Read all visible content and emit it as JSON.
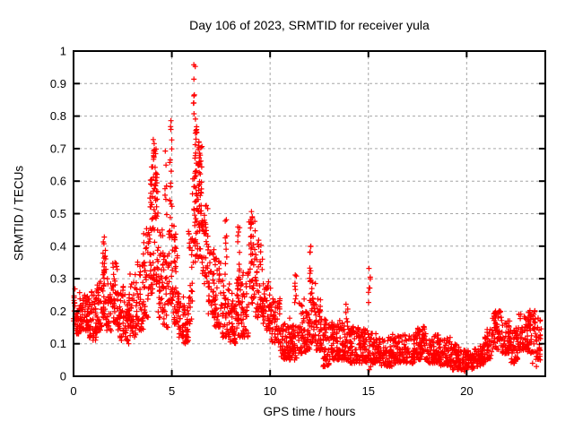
{
  "chart_data": {
    "type": "scatter",
    "title": "Day 106 of 2023, SRMTID for receiver yula",
    "xlabel": "GPS time / hours",
    "ylabel": "SRMTID / TECUs",
    "xlim": [
      0,
      24
    ],
    "ylim": [
      0,
      1
    ],
    "x_ticks": [
      {
        "v": 0,
        "label": "0"
      },
      {
        "v": 5,
        "label": "5"
      },
      {
        "v": 10,
        "label": "10"
      },
      {
        "v": 15,
        "label": "15"
      },
      {
        "v": 20,
        "label": "20"
      }
    ],
    "y_ticks": [
      {
        "v": 0,
        "label": "0"
      },
      {
        "v": 0.1,
        "label": "0.1"
      },
      {
        "v": 0.2,
        "label": "0.2"
      },
      {
        "v": 0.3,
        "label": "0.3"
      },
      {
        "v": 0.4,
        "label": "0.4"
      },
      {
        "v": 0.5,
        "label": "0.5"
      },
      {
        "v": 0.6,
        "label": "0.6"
      },
      {
        "v": 0.7,
        "label": "0.7"
      },
      {
        "v": 0.8,
        "label": "0.8"
      },
      {
        "v": 0.9,
        "label": "0.9"
      },
      {
        "v": 1,
        "label": "1"
      }
    ],
    "grid": true,
    "legend": "none",
    "marker": {
      "shape": "plus",
      "color": "#ff0000",
      "size": 6,
      "stroke_width": 1.2
    },
    "colors": {
      "axis": "#000000",
      "grid": "#a6a6a6",
      "text": "#000000",
      "background": "#ffffff"
    },
    "seed": 1062023,
    "description": "Dense time series of SRMTID values vs GPS time; quiet ~0.2 band early, large ionospheric-disturbance peaks near hours 4 (0.75), 5 (0.85) and 6.2 (0.96), decaying to a low 0.03-0.15 band after hour 11 with minor spikes, minimum near hour 20, slight rise to ~0.2 by hour 23.8",
    "bands": [
      [
        0.0,
        0.35,
        0.13,
        0.27,
        45
      ],
      [
        0.35,
        0.8,
        0.14,
        0.25,
        55
      ],
      [
        0.8,
        1.2,
        0.11,
        0.28,
        50
      ],
      [
        1.2,
        1.45,
        0.14,
        0.3,
        30
      ],
      [
        1.45,
        1.65,
        0.18,
        0.4,
        28
      ],
      [
        1.65,
        1.95,
        0.14,
        0.3,
        36
      ],
      [
        1.95,
        2.25,
        0.16,
        0.35,
        38
      ],
      [
        2.25,
        2.55,
        0.11,
        0.28,
        36
      ],
      [
        2.55,
        2.85,
        0.1,
        0.26,
        36
      ],
      [
        2.85,
        3.2,
        0.12,
        0.33,
        42
      ],
      [
        3.2,
        3.55,
        0.14,
        0.36,
        42
      ],
      [
        3.55,
        3.85,
        0.18,
        0.46,
        40
      ],
      [
        3.85,
        4.05,
        0.25,
        0.65,
        30
      ],
      [
        4.05,
        4.3,
        0.28,
        0.72,
        40
      ],
      [
        4.3,
        4.55,
        0.18,
        0.45,
        32
      ],
      [
        4.55,
        4.8,
        0.15,
        0.38,
        30
      ],
      [
        4.8,
        5.05,
        0.22,
        0.55,
        35
      ],
      [
        5.05,
        5.3,
        0.16,
        0.4,
        30
      ],
      [
        5.3,
        5.6,
        0.12,
        0.26,
        34
      ],
      [
        5.6,
        5.85,
        0.1,
        0.22,
        30
      ],
      [
        5.85,
        6.05,
        0.15,
        0.45,
        26
      ],
      [
        6.05,
        6.3,
        0.35,
        0.78,
        38
      ],
      [
        6.3,
        6.55,
        0.35,
        0.72,
        36
      ],
      [
        6.55,
        6.85,
        0.28,
        0.55,
        36
      ],
      [
        6.85,
        7.15,
        0.18,
        0.4,
        36
      ],
      [
        7.15,
        7.55,
        0.15,
        0.37,
        44
      ],
      [
        7.55,
        7.95,
        0.12,
        0.3,
        44
      ],
      [
        7.95,
        8.25,
        0.1,
        0.26,
        36
      ],
      [
        8.25,
        8.55,
        0.12,
        0.3,
        36
      ],
      [
        8.55,
        8.9,
        0.12,
        0.32,
        40
      ],
      [
        8.9,
        9.25,
        0.22,
        0.48,
        40
      ],
      [
        9.25,
        9.65,
        0.18,
        0.42,
        44
      ],
      [
        9.65,
        10.05,
        0.14,
        0.3,
        44
      ],
      [
        10.05,
        10.5,
        0.1,
        0.25,
        50
      ],
      [
        10.5,
        11.0,
        0.05,
        0.18,
        52
      ],
      [
        11.0,
        11.45,
        0.05,
        0.16,
        50
      ],
      [
        11.45,
        11.75,
        0.07,
        0.25,
        36
      ],
      [
        11.75,
        12.05,
        0.07,
        0.2,
        36
      ],
      [
        12.05,
        12.35,
        0.1,
        0.3,
        36
      ],
      [
        12.35,
        12.65,
        0.08,
        0.24,
        36
      ],
      [
        12.65,
        13.0,
        0.03,
        0.18,
        42
      ],
      [
        13.0,
        13.5,
        0.05,
        0.17,
        58
      ],
      [
        13.5,
        14.0,
        0.05,
        0.18,
        58
      ],
      [
        14.0,
        14.5,
        0.04,
        0.16,
        58
      ],
      [
        14.5,
        15.0,
        0.04,
        0.15,
        58
      ],
      [
        15.0,
        15.6,
        0.04,
        0.14,
        64
      ],
      [
        15.6,
        16.2,
        0.03,
        0.12,
        64
      ],
      [
        16.2,
        16.8,
        0.04,
        0.13,
        64
      ],
      [
        16.8,
        17.4,
        0.04,
        0.13,
        64
      ],
      [
        17.4,
        18.0,
        0.05,
        0.15,
        64
      ],
      [
        18.0,
        18.6,
        0.04,
        0.13,
        64
      ],
      [
        18.6,
        19.2,
        0.03,
        0.12,
        64
      ],
      [
        19.2,
        19.8,
        0.02,
        0.1,
        60
      ],
      [
        19.8,
        20.4,
        0.02,
        0.08,
        60
      ],
      [
        20.4,
        20.9,
        0.03,
        0.1,
        54
      ],
      [
        20.9,
        21.3,
        0.05,
        0.15,
        46
      ],
      [
        21.3,
        21.8,
        0.08,
        0.21,
        52
      ],
      [
        21.8,
        22.2,
        0.07,
        0.17,
        44
      ],
      [
        22.2,
        22.6,
        0.04,
        0.15,
        44
      ],
      [
        22.6,
        23.1,
        0.08,
        0.2,
        52
      ],
      [
        23.1,
        23.5,
        0.07,
        0.21,
        46
      ],
      [
        23.5,
        23.8,
        0.05,
        0.18,
        30
      ]
    ],
    "spikes": [
      [
        1.55,
        0.3,
        0.44,
        10
      ],
      [
        3.95,
        0.45,
        0.62,
        8
      ],
      [
        4.1,
        0.55,
        0.75,
        12
      ],
      [
        4.18,
        0.45,
        0.72,
        10
      ],
      [
        4.7,
        0.45,
        0.77,
        7
      ],
      [
        4.95,
        0.55,
        0.85,
        10
      ],
      [
        5.15,
        0.4,
        0.51,
        6
      ],
      [
        6.15,
        0.8,
        0.96,
        8
      ],
      [
        6.22,
        0.55,
        0.8,
        12
      ],
      [
        6.4,
        0.55,
        0.78,
        12
      ],
      [
        6.52,
        0.45,
        0.62,
        8
      ],
      [
        7.75,
        0.3,
        0.5,
        9
      ],
      [
        8.4,
        0.3,
        0.5,
        10
      ],
      [
        9.05,
        0.42,
        0.51,
        8
      ],
      [
        11.3,
        0.22,
        0.33,
        8
      ],
      [
        12.05,
        0.15,
        0.4,
        14
      ],
      [
        13.9,
        0.16,
        0.23,
        5
      ],
      [
        15.05,
        0.18,
        0.37,
        7
      ],
      [
        17.8,
        0.13,
        0.17,
        4
      ],
      [
        21.5,
        0.15,
        0.21,
        8
      ],
      [
        23.2,
        0.15,
        0.21,
        6
      ]
    ],
    "outliers": [
      [
        15.05,
        0.02
      ],
      [
        15.12,
        0.03
      ],
      [
        12.7,
        0.03
      ],
      [
        19.9,
        0.015
      ],
      [
        22.4,
        0.04
      ],
      [
        23.35,
        0.04
      ],
      [
        23.55,
        0.03
      ]
    ]
  }
}
